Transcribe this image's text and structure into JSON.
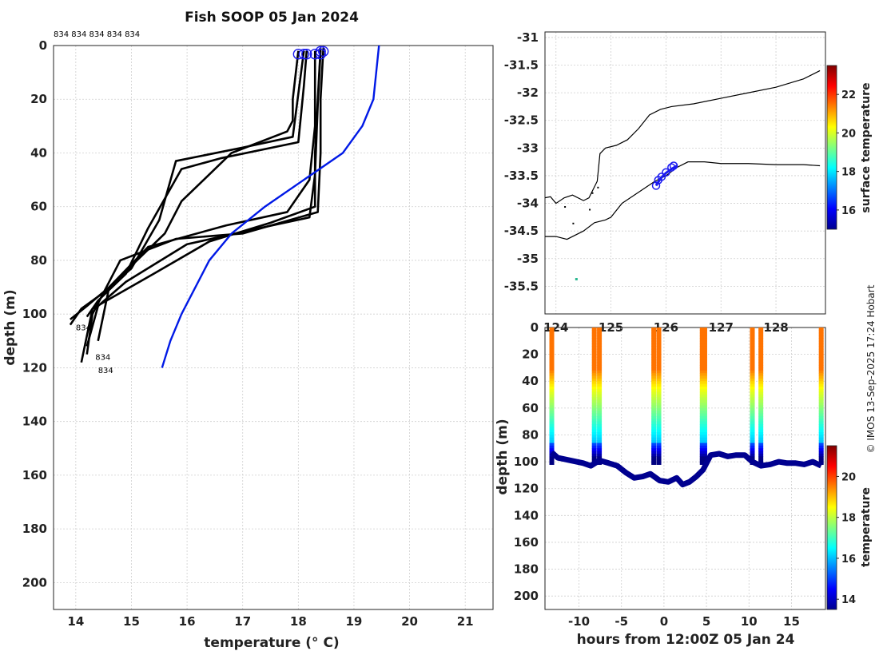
{
  "title": "Fish SOOP 05 Jan 2024",
  "profile_tags": "834 834 834 834 834",
  "cast_labels": [
    "834",
    "834",
    "834"
  ],
  "copyright": "© IMOS 13-Sep-2025 17:24 Hobart",
  "colors": {
    "profile": "#000000",
    "climatology": "#0019e6",
    "coast": "#000000",
    "track": "#1a1af0"
  },
  "chart_data": [
    {
      "id": "profiles",
      "type": "line",
      "xlabel": "temperature (° C)",
      "ylabel": "depth (m)",
      "xlim": [
        13.6,
        21.5
      ],
      "ylim": [
        0,
        210
      ],
      "xticks": [
        14,
        15,
        16,
        17,
        18,
        19,
        20,
        21
      ],
      "yticks": [
        0,
        20,
        40,
        60,
        80,
        100,
        120,
        140,
        160,
        180,
        200
      ],
      "grid": true,
      "series": [
        {
          "name": "cast 1",
          "color": "#000000",
          "x": [
            18.0,
            17.9,
            17.9,
            17.8,
            16.8,
            15.9,
            15.6,
            14.6,
            14.2,
            13.9
          ],
          "y": [
            2,
            20,
            28,
            32,
            40,
            58,
            70,
            90,
            97,
            102
          ]
        },
        {
          "name": "cast 2",
          "color": "#000000",
          "x": [
            18.1,
            18.0,
            17.9,
            17.0,
            15.8,
            15.5,
            15.0,
            14.5,
            14.1,
            13.9
          ],
          "y": [
            2,
            18,
            34,
            38,
            43,
            65,
            83,
            92,
            98,
            104
          ]
        },
        {
          "name": "cast 3",
          "color": "#000000",
          "x": [
            18.15,
            18.1,
            18.0,
            16.6,
            15.9,
            15.3,
            14.9,
            14.4,
            14.2
          ],
          "y": [
            2,
            15,
            36,
            42,
            46,
            68,
            85,
            95,
            101
          ]
        },
        {
          "name": "cast 4",
          "color": "#000000",
          "x": [
            18.4,
            18.35,
            18.3,
            18.3,
            17.5,
            16.4,
            15.4,
            14.3,
            14.1
          ],
          "y": [
            1,
            20,
            40,
            60,
            66,
            73,
            85,
            98,
            118
          ]
        },
        {
          "name": "cast 5",
          "color": "#000000",
          "x": [
            18.45,
            18.4,
            18.4,
            18.35,
            17.0,
            15.8,
            14.8,
            14.3,
            14.2
          ],
          "y": [
            1,
            20,
            40,
            62,
            70,
            72,
            80,
            100,
            115
          ]
        },
        {
          "name": "cast 6",
          "color": "#000000",
          "x": [
            18.4,
            18.35,
            18.3,
            18.2,
            17.3,
            16.0,
            14.9,
            14.4,
            14.2
          ],
          "y": [
            2,
            22,
            48,
            64,
            68,
            74,
            88,
            97,
            112
          ]
        },
        {
          "name": "cast 7",
          "color": "#000000",
          "x": [
            18.3,
            18.3,
            18.2,
            17.8,
            16.7,
            15.3,
            14.6,
            14.4
          ],
          "y": [
            2,
            30,
            50,
            62,
            67,
            75,
            90,
            110
          ]
        },
        {
          "name": "climatology",
          "color": "#0019e6",
          "x": [
            19.45,
            19.35,
            19.15,
            18.8,
            17.4,
            16.8,
            16.4,
            15.9,
            15.7,
            15.55
          ],
          "y": [
            0,
            20,
            30,
            40,
            60,
            70,
            80,
            100,
            110,
            120
          ]
        }
      ]
    },
    {
      "id": "map",
      "type": "scatter",
      "xlabel": "",
      "ylabel": "",
      "xlim": [
        123.8,
        128.9
      ],
      "ylim": [
        -36.0,
        -30.9
      ],
      "xticks": [
        124,
        125,
        126,
        127,
        128
      ],
      "xtick_labels": [
        "124",
        "125",
        "126",
        "127",
        "128"
      ],
      "yticks": [
        -31,
        -31.5,
        -32,
        -32.5,
        -33,
        -33.5,
        -34,
        -34.5,
        -35,
        -35.5
      ],
      "ytick_labels": [
        "-31",
        "-31.5",
        "-32",
        "-32.5",
        "-33",
        "-33.5",
        "-34",
        "-34.5",
        "-35",
        "-35.5"
      ],
      "grid": true,
      "coast_inner": {
        "x": [
          123.8,
          124.0,
          124.2,
          124.5,
          124.7,
          124.9,
          125.0,
          125.2,
          125.5,
          125.8,
          126.0,
          126.2,
          126.4,
          126.7,
          127.0,
          127.5,
          128.0,
          128.5,
          128.8
        ],
        "y": [
          -34.6,
          -34.6,
          -34.65,
          -34.5,
          -34.35,
          -34.3,
          -34.25,
          -34.0,
          -33.8,
          -33.6,
          -33.5,
          -33.35,
          -33.25,
          -33.25,
          -33.28,
          -33.28,
          -33.3,
          -33.3,
          -33.32
        ]
      },
      "coast_outer": {
        "x": [
          123.8,
          123.9,
          124.0,
          124.15,
          124.3,
          124.5,
          124.6,
          124.75,
          124.8,
          124.9,
          125.1,
          125.3,
          125.5,
          125.7,
          125.9,
          126.1,
          126.5,
          127.0,
          127.5,
          128.0,
          128.5,
          128.8
        ],
        "y": [
          -33.9,
          -33.88,
          -34.0,
          -33.9,
          -33.85,
          -33.95,
          -33.9,
          -33.6,
          -33.1,
          -33.0,
          -32.95,
          -32.85,
          -32.65,
          -32.4,
          -32.3,
          -32.25,
          -32.2,
          -32.1,
          -32.0,
          -31.9,
          -31.75,
          -31.6
        ]
      },
      "track": {
        "x": [
          125.82,
          125.9,
          126.0,
          126.1,
          126.2
        ],
        "y": [
          -33.68,
          -33.55,
          -33.45,
          -33.38,
          -33.32
        ]
      },
      "track_markers": {
        "x": [
          125.82,
          125.86,
          125.92,
          126.0,
          126.1,
          126.14
        ],
        "y": [
          -33.68,
          -33.58,
          -33.52,
          -33.44,
          -33.35,
          -33.32
        ]
      },
      "colorbar": {
        "label": "surface temperature",
        "range": [
          15,
          23.5
        ],
        "ticks": [
          16,
          18,
          20,
          22
        ]
      }
    },
    {
      "id": "section",
      "type": "scatter",
      "xlabel": "hours from 12:00Z 05 Jan 24",
      "ylabel": "depth (m)",
      "xlim": [
        -14,
        19
      ],
      "ylim": [
        0,
        210
      ],
      "xticks": [
        -10,
        -5,
        0,
        5,
        10,
        15
      ],
      "xtick_labels": [
        "-10",
        "-5",
        "0",
        "5",
        "10",
        "15"
      ],
      "yticks": [
        0,
        20,
        40,
        60,
        80,
        100,
        120,
        140,
        160,
        180,
        200
      ],
      "grid": true,
      "casts": [
        -13.2,
        -8.2,
        -7.6,
        -1.2,
        -0.6,
        4.5,
        4.8,
        10.4,
        11.4,
        18.5
      ],
      "bottom": {
        "x": [
          -13.2,
          -12.5,
          -11,
          -9.5,
          -8.6,
          -7.6,
          -6.5,
          -5.5,
          -4.5,
          -3.5,
          -2.5,
          -1.6,
          -0.5,
          0.5,
          1.5,
          2.2,
          3.0,
          3.8,
          4.6,
          5.5,
          6.5,
          7.5,
          8.5,
          9.5,
          10.4,
          11.4,
          12.5,
          13.5,
          14.5,
          15.5,
          16.5,
          17.5,
          18.5
        ],
        "y": [
          93,
          97,
          99,
          101,
          103,
          99,
          101,
          103,
          108,
          112,
          111,
          109,
          114,
          115,
          112,
          117,
          115,
          111,
          106,
          95,
          94,
          96,
          95,
          95,
          100,
          103,
          102,
          100,
          101,
          101,
          102,
          100,
          103
        ]
      },
      "colorbar": {
        "label": "temperature",
        "range": [
          13.5,
          21.5
        ],
        "ticks": [
          14,
          16,
          18,
          20
        ]
      }
    }
  ]
}
